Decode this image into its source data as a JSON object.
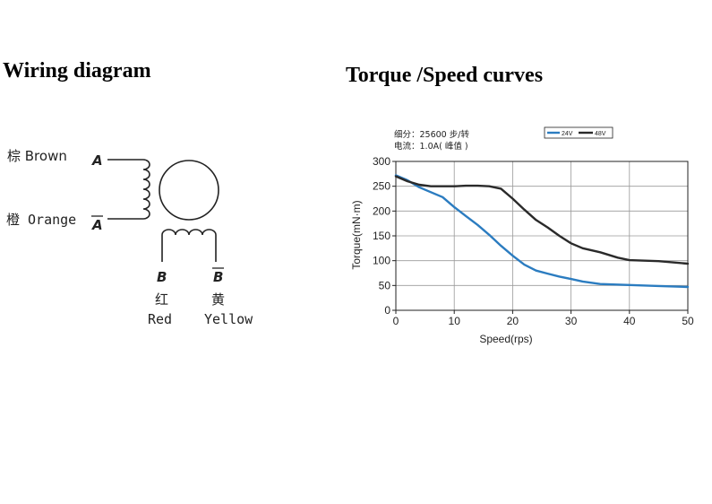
{
  "wiring": {
    "title": "Wiring diagram",
    "labels": {
      "brown": "棕 Brown",
      "orange": "橙 Orange",
      "pin_a": "A",
      "pin_a_bar": "A",
      "pin_b": "B",
      "pin_b_bar": "B",
      "red_cn": "红",
      "red": "Red",
      "yellow_cn": "黄",
      "yellow": "Yellow"
    }
  },
  "torque": {
    "title": "Torque /Speed curves",
    "note_line1": "细分：25600 步/转",
    "note_line2": "电流：1.0A( 峰值 )"
  },
  "chart_data": {
    "type": "line",
    "xlabel": "Speed(rps)",
    "ylabel": "Torque(mN·m)",
    "xlim": [
      0,
      50
    ],
    "ylim": [
      0,
      300
    ],
    "xticks": [
      "0",
      "10",
      "20",
      "30",
      "40",
      "50"
    ],
    "yticks": [
      "0",
      "50",
      "100",
      "150",
      "200",
      "250",
      "300"
    ],
    "grid": true,
    "legend": "top-right",
    "series": [
      {
        "name": "24V",
        "color": "#2b7cc0",
        "x": [
          0,
          2,
          4,
          6,
          8,
          10,
          12,
          14,
          16,
          18,
          20,
          22,
          24,
          26,
          28,
          30,
          32,
          35,
          40,
          45,
          50
        ],
        "y": [
          272,
          262,
          248,
          238,
          228,
          208,
          190,
          172,
          152,
          130,
          110,
          92,
          80,
          74,
          68,
          63,
          58,
          53,
          51,
          49,
          47
        ]
      },
      {
        "name": "48V",
        "color": "#2a2a2a",
        "x": [
          0,
          2,
          4,
          6,
          8,
          10,
          12,
          14,
          16,
          18,
          20,
          22,
          24,
          26,
          28,
          30,
          32,
          35,
          38,
          40,
          45,
          50
        ],
        "y": [
          270,
          260,
          253,
          250,
          250,
          250,
          251,
          251,
          250,
          245,
          225,
          203,
          182,
          167,
          150,
          135,
          125,
          117,
          106,
          101,
          99,
          94
        ]
      }
    ]
  }
}
